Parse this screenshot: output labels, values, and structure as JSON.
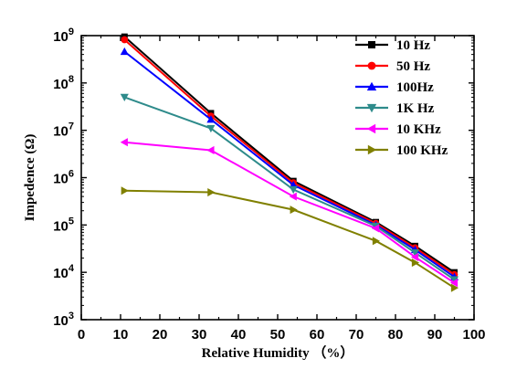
{
  "chart_data": {
    "type": "line",
    "xlabel": "Relative Humidity （%）",
    "ylabel": "Impedence (Ω)",
    "xlim": [
      0,
      100
    ],
    "ylim": [
      1000,
      1000000000
    ],
    "yscale": "log",
    "x_ticks": [
      "0",
      "10",
      "20",
      "30",
      "40",
      "50",
      "60",
      "70",
      "80",
      "90",
      "100"
    ],
    "y_ticks": [
      {
        "base": "10",
        "exp": "3",
        "value": 1000
      },
      {
        "base": "10",
        "exp": "4",
        "value": 10000
      },
      {
        "base": "10",
        "exp": "5",
        "value": 100000
      },
      {
        "base": "10",
        "exp": "6",
        "value": 1000000
      },
      {
        "base": "10",
        "exp": "7",
        "value": 10000000
      },
      {
        "base": "10",
        "exp": "8",
        "value": 100000000
      },
      {
        "base": "10",
        "exp": "9",
        "value": 1000000000
      }
    ],
    "legend_position": "top-right",
    "grid": false,
    "x": [
      11,
      33,
      54,
      75,
      85,
      95
    ],
    "series": [
      {
        "name": "10 Hz",
        "color": "#000000",
        "marker": "square",
        "values": [
          950000000,
          23000000,
          850000,
          115000,
          36000,
          10000
        ]
      },
      {
        "name": "50 Hz",
        "color": "#ff0000",
        "marker": "circle",
        "values": [
          820000000,
          20000000,
          780000,
          108000,
          33000,
          9000
        ]
      },
      {
        "name": "100Hz",
        "color": "#0000ff",
        "marker": "triangle-up",
        "values": [
          460000000,
          17000000,
          700000,
          100000,
          30000,
          8000
        ]
      },
      {
        "name": "1K Hz",
        "color": "#2e8b8b",
        "marker": "triangle-down",
        "values": [
          50000000,
          11000000,
          560000,
          95000,
          26000,
          7000
        ]
      },
      {
        "name": "10 KHz",
        "color": "#ff00ff",
        "marker": "triangle-left",
        "values": [
          5600000,
          3800000,
          400000,
          85000,
          21000,
          6000
        ]
      },
      {
        "name": "100 KHz",
        "color": "#808000",
        "marker": "triangle-right",
        "values": [
          530000,
          490000,
          210000,
          46000,
          16000,
          4700
        ]
      }
    ]
  }
}
